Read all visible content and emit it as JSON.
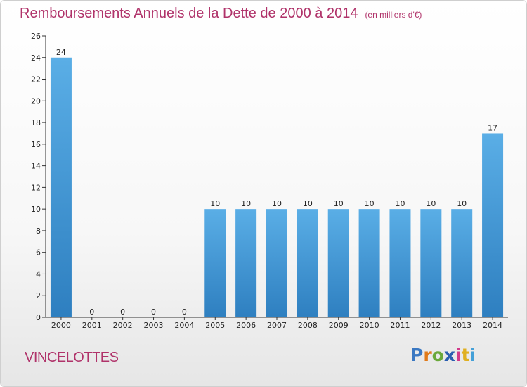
{
  "chart_data": {
    "type": "bar",
    "title": "Remboursements Annuels de la Dette de 2000 à 2014",
    "unit_note": "(en milliers d'€)",
    "categories": [
      "2000",
      "2001",
      "2002",
      "2003",
      "2004",
      "2005",
      "2006",
      "2007",
      "2008",
      "2009",
      "2010",
      "2011",
      "2012",
      "2013",
      "2014"
    ],
    "values": [
      24,
      0,
      0,
      0,
      0,
      10,
      10,
      10,
      10,
      10,
      10,
      10,
      10,
      10,
      17
    ],
    "ylim": [
      0,
      26
    ],
    "yticks": [
      0,
      2,
      4,
      6,
      8,
      10,
      12,
      14,
      16,
      18,
      20,
      22,
      24,
      26
    ],
    "grid": false,
    "legend": "none",
    "bar_color_top": "#5aaee6",
    "bar_color_bottom": "#2e7fc0"
  },
  "footer": {
    "commune": "VINCELOTTES",
    "logo_letters": [
      "P",
      "r",
      "o",
      "x",
      "i",
      "t",
      "i"
    ],
    "logo_colors": [
      "#3a78c2",
      "#e07a1a",
      "#6aa83a",
      "#2a5fb0",
      "#d23a8a",
      "#e0b020",
      "#44a0d8"
    ]
  }
}
